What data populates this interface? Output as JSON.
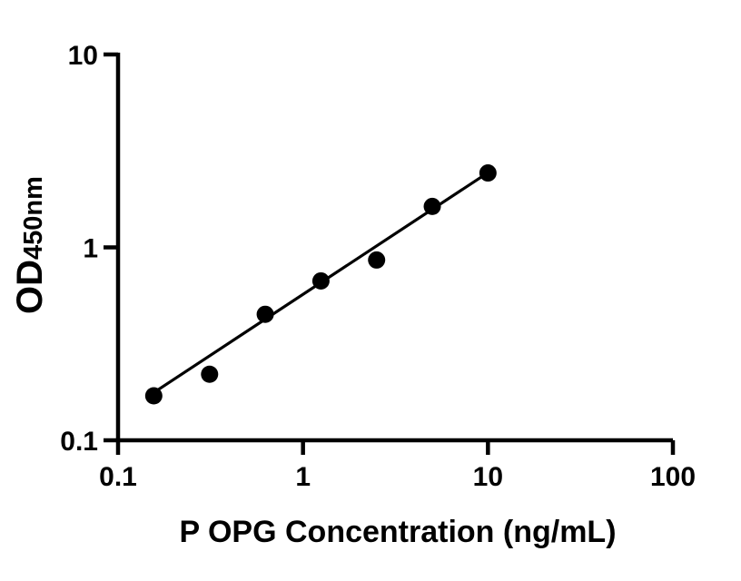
{
  "figure": {
    "background_color": "#ffffff",
    "foreground_color": "#000000"
  },
  "chart_data": {
    "type": "scatter",
    "title": "",
    "xlabel": "P OPG Concentration (ng/mL)",
    "ylabel_main": "OD",
    "ylabel_sub": "450nm",
    "x_scale": "log",
    "y_scale": "log",
    "xlim": [
      0.1,
      100
    ],
    "ylim": [
      0.1,
      10
    ],
    "grid": false,
    "legend": false,
    "x_ticks": [
      {
        "value": 0.1,
        "label": "0.1"
      },
      {
        "value": 1,
        "label": "1"
      },
      {
        "value": 10,
        "label": "10"
      },
      {
        "value": 100,
        "label": "100"
      }
    ],
    "y_ticks": [
      {
        "value": 0.1,
        "label": "0.1"
      },
      {
        "value": 1,
        "label": "1"
      },
      {
        "value": 10,
        "label": "10"
      }
    ],
    "series": [
      {
        "name": "standard-curve-points",
        "marker": "circle",
        "marker_color": "#000000",
        "marker_radius": 9.5,
        "points": [
          {
            "x": 0.156,
            "y": 0.17
          },
          {
            "x": 0.3125,
            "y": 0.22
          },
          {
            "x": 0.625,
            "y": 0.45
          },
          {
            "x": 1.25,
            "y": 0.67
          },
          {
            "x": 2.5,
            "y": 0.86
          },
          {
            "x": 5,
            "y": 1.63
          },
          {
            "x": 10,
            "y": 2.43
          }
        ]
      }
    ],
    "trendline": {
      "x1": 0.155,
      "y1": 0.176,
      "x2": 10.0,
      "y2": 2.44,
      "color": "#000000",
      "width": 3.2
    }
  }
}
